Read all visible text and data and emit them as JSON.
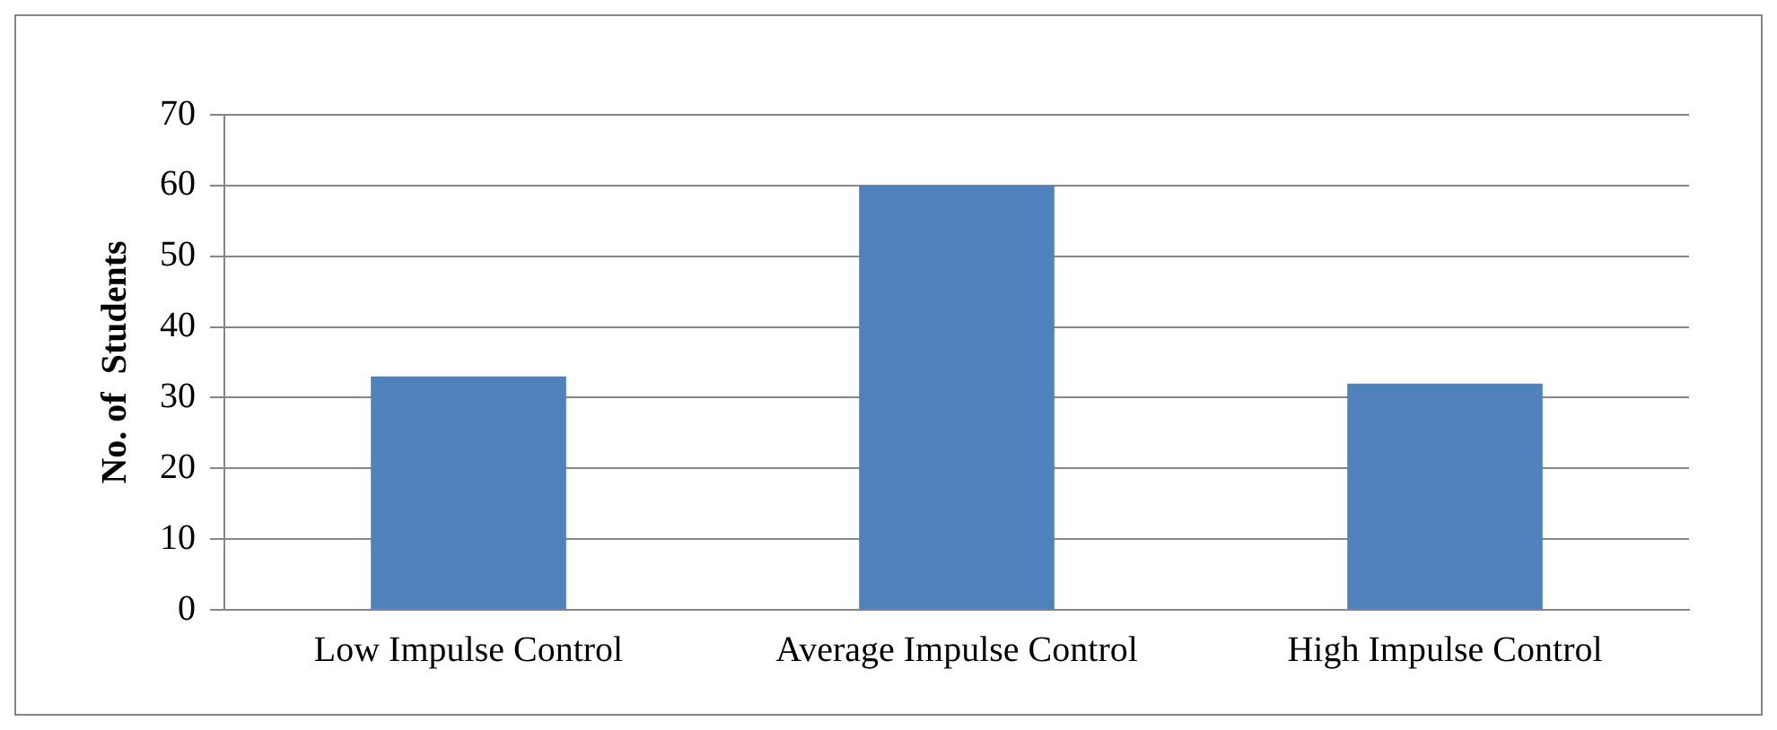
{
  "chart_data": {
    "type": "bar",
    "ylabel": "No. of  Students",
    "categories": [
      "Low Impulse Control",
      "Average Impulse Control",
      "High Impulse Control"
    ],
    "values": [
      33,
      60,
      32
    ],
    "color": "#4f81bd",
    "ylim": [
      0,
      70
    ],
    "yticks": [
      0,
      10,
      20,
      30,
      40,
      50,
      60,
      70
    ],
    "grid": "y"
  }
}
